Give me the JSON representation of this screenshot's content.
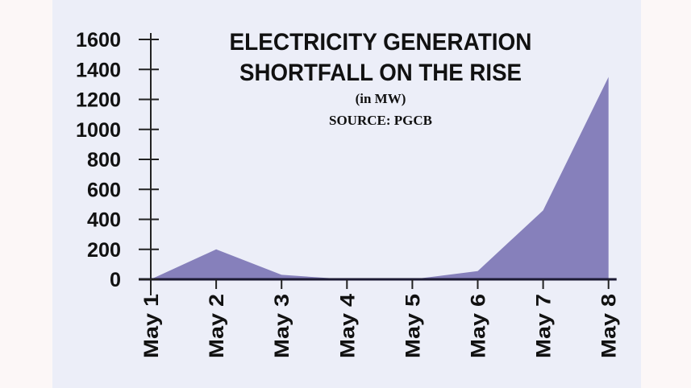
{
  "chart_data": {
    "type": "area",
    "title": [
      "ELECTRICITY GENERATION",
      "SHORTFALL ON THE RISE"
    ],
    "subtitle": "(in MW)",
    "source": "SOURCE: PGCB",
    "categories": [
      "May 1",
      "May 2",
      "May 3",
      "May 4",
      "May 5",
      "May 6",
      "May 7",
      "May 8"
    ],
    "values": [
      0,
      200,
      30,
      0,
      0,
      55,
      460,
      1350
    ],
    "ylim": [
      0,
      1600
    ],
    "yticks": [
      0,
      200,
      400,
      600,
      800,
      1000,
      1200,
      1400,
      1600
    ],
    "grid": false,
    "color": "#8680bb"
  }
}
